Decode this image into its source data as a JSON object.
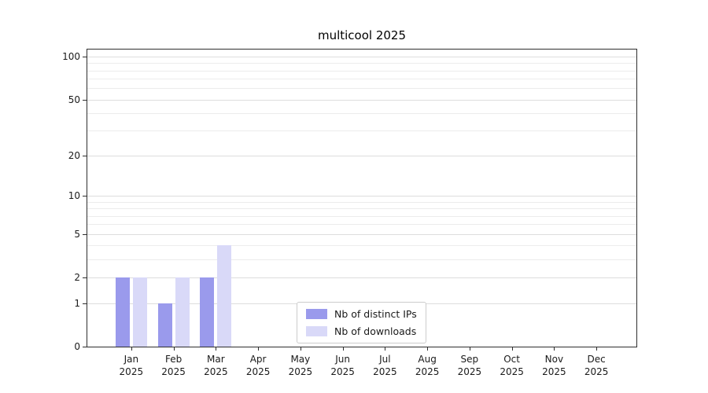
{
  "chart_data": {
    "type": "bar",
    "title": "multicool 2025",
    "x_tick_labels": [
      {
        "month": "Jan",
        "year": "2025"
      },
      {
        "month": "Feb",
        "year": "2025"
      },
      {
        "month": "Mar",
        "year": "2025"
      },
      {
        "month": "Apr",
        "year": "2025"
      },
      {
        "month": "May",
        "year": "2025"
      },
      {
        "month": "Jun",
        "year": "2025"
      },
      {
        "month": "Jul",
        "year": "2025"
      },
      {
        "month": "Aug",
        "year": "2025"
      },
      {
        "month": "Sep",
        "year": "2025"
      },
      {
        "month": "Oct",
        "year": "2025"
      },
      {
        "month": "Nov",
        "year": "2025"
      },
      {
        "month": "Dec",
        "year": "2025"
      }
    ],
    "series": [
      {
        "name": "Nb of distinct IPs",
        "color": "#9a9aec",
        "values": [
          2,
          1,
          2,
          0,
          0,
          0,
          0,
          0,
          0,
          0,
          0,
          0
        ]
      },
      {
        "name": "Nb of downloads",
        "color": "#d9d9f8",
        "values": [
          2,
          2,
          4,
          0,
          0,
          0,
          0,
          0,
          0,
          0,
          0,
          0
        ]
      }
    ],
    "y_ticks": [
      0,
      1,
      2,
      5,
      10,
      20,
      50,
      100
    ],
    "y_minor_gridlines": [
      3,
      4,
      6,
      7,
      8,
      9,
      30,
      40,
      60,
      70,
      80,
      90
    ],
    "y_max": 100,
    "scale": "log1p",
    "grid": true,
    "legend_position": "lower center"
  }
}
